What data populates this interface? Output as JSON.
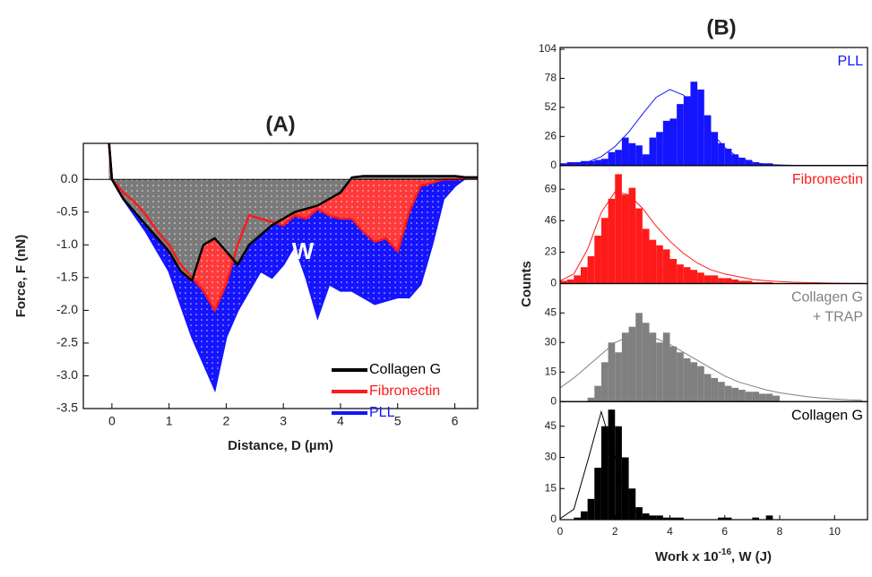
{
  "chart_data": [
    {
      "type": "line",
      "title": "(A)",
      "xlabel": "Distance, D (µm)",
      "ylabel": "Force, F (nN)",
      "annotation": "W",
      "x": [
        -0.05,
        0,
        0.2,
        0.4,
        0.6,
        0.8,
        1.0,
        1.2,
        1.4,
        1.6,
        1.8,
        2.0,
        2.2,
        2.4,
        2.6,
        2.8,
        3.0,
        3.2,
        3.4,
        3.6,
        3.8,
        4.0,
        4.2,
        4.4,
        4.6,
        4.8,
        5.0,
        5.2,
        5.4,
        5.6,
        5.8,
        6.0,
        6.2,
        6.4
      ],
      "series": [
        {
          "name": "PLL",
          "color": "#1414ff",
          "fill": "#1414ff",
          "values": [
            0.55,
            0,
            -0.3,
            -0.55,
            -0.8,
            -1.1,
            -1.4,
            -1.9,
            -2.4,
            -2.8,
            -3.2,
            -2.4,
            -2.0,
            -1.7,
            -1.4,
            -1.5,
            -1.3,
            -1.0,
            -1.5,
            -2.1,
            -1.6,
            -1.7,
            -1.7,
            -1.8,
            -1.9,
            -1.85,
            -1.8,
            -1.8,
            -1.6,
            -1.0,
            -0.3,
            -0.1,
            0.03,
            0.03
          ]
        },
        {
          "name": "Fibronectin",
          "color": "#ff1a1a",
          "fill": "#ff3a3a",
          "values": [
            0.55,
            0,
            -0.2,
            -0.35,
            -0.55,
            -0.8,
            -1.0,
            -1.3,
            -1.5,
            -1.7,
            -2.0,
            -1.6,
            -1.0,
            -0.55,
            -0.6,
            -0.65,
            -0.7,
            -0.55,
            -0.6,
            -0.45,
            -0.55,
            -0.6,
            -0.6,
            -0.8,
            -0.95,
            -0.9,
            -1.1,
            -0.5,
            -0.1,
            -0.05,
            0,
            0,
            0.03,
            0.03
          ]
        },
        {
          "name": "Collagen G",
          "color": "#000000",
          "fill": "#7a7a7a",
          "values": [
            0.55,
            0,
            -0.3,
            -0.5,
            -0.7,
            -0.9,
            -1.1,
            -1.4,
            -1.55,
            -1.0,
            -0.9,
            -1.1,
            -1.3,
            -1.0,
            -0.85,
            -0.7,
            -0.6,
            -0.5,
            -0.45,
            -0.4,
            -0.3,
            -0.2,
            0.03,
            0.05,
            0.05,
            0.05,
            0.05,
            0.05,
            0.05,
            0.05,
            0.05,
            0.05,
            0.03,
            0.03
          ]
        }
      ],
      "xlim": [
        -0.5,
        6.4
      ],
      "xticks": [
        0,
        1,
        2,
        3,
        4,
        5,
        6
      ],
      "ylim": [
        -3.5,
        0.55
      ],
      "yticks": [
        {
          "value": 0,
          "label": "0.0"
        },
        -0.5,
        {
          "value": -1,
          "label": "-1.0"
        },
        -1.5,
        {
          "value": -2,
          "label": "-2.0"
        },
        -2.5,
        {
          "value": -3,
          "label": "-3.0"
        },
        -3.5
      ],
      "legend": "lower right"
    },
    {
      "type": "histogram",
      "title": "(B)",
      "ylabel": "Counts",
      "xlabel": [
        "Work x 10",
        "-16",
        ", W (J)"
      ],
      "xlim": [
        0,
        11.2
      ],
      "xticks": [
        0,
        2,
        4,
        6,
        8,
        10
      ],
      "bins": [
        0,
        0.25,
        0.5,
        0.75,
        1,
        1.25,
        1.5,
        1.75,
        2,
        2.25,
        2.5,
        2.75,
        3,
        3.25,
        3.5,
        3.75,
        4,
        4.25,
        4.5,
        4.75,
        5,
        5.25,
        5.5,
        5.75,
        6,
        6.25,
        6.5,
        6.75,
        7,
        7.25,
        7.5,
        7.75,
        8
      ],
      "fit_x": [
        0,
        0.5,
        1,
        1.5,
        2,
        2.5,
        3,
        3.5,
        4,
        4.5,
        5,
        5.5,
        6,
        6.5,
        7,
        7.5,
        8,
        8.5,
        9,
        9.5,
        10,
        10.5,
        11
      ],
      "panels": [
        {
          "name": [
            "PLL"
          ],
          "color": "#1414ff",
          "ylim": [
            0,
            104
          ],
          "yticks": [
            0,
            26,
            52,
            78,
            104
          ],
          "counts": [
            2,
            3,
            3,
            4,
            4,
            5,
            6,
            12,
            14,
            25,
            20,
            18,
            10,
            25,
            30,
            40,
            42,
            55,
            62,
            75,
            68,
            45,
            30,
            20,
            15,
            10,
            7,
            5,
            3,
            2,
            2,
            1
          ],
          "fit": [
            0.5,
            1,
            3,
            8,
            17,
            30,
            46,
            61,
            68,
            63,
            48,
            30,
            16,
            7,
            3,
            1,
            0.5,
            0.2,
            0.1,
            0,
            0,
            0,
            0
          ]
        },
        {
          "name": [
            "Fibronectin"
          ],
          "color": "#ff1a1a",
          "ylim": [
            0,
            85
          ],
          "yticks": [
            0,
            23,
            46,
            69
          ],
          "counts": [
            2,
            3,
            6,
            12,
            20,
            35,
            48,
            62,
            80,
            65,
            70,
            55,
            40,
            32,
            28,
            25,
            18,
            14,
            12,
            10,
            8,
            6,
            6,
            4,
            4,
            3,
            2,
            2,
            1,
            1,
            1,
            0
          ],
          "fit": [
            2,
            7,
            25,
            52,
            67,
            65,
            55,
            42,
            31,
            22,
            15,
            10,
            7,
            5,
            3,
            2,
            1.5,
            1,
            0.7,
            0.5,
            0.3,
            0.2,
            0.1
          ]
        },
        {
          "name": [
            "Collagen G",
            "+ TRAP"
          ],
          "color": "#808080",
          "ylim": [
            0,
            59
          ],
          "yticks": [
            0,
            15,
            30,
            45
          ],
          "counts": [
            0,
            0,
            0,
            0,
            2,
            8,
            20,
            30,
            25,
            35,
            38,
            45,
            40,
            35,
            30,
            35,
            28,
            25,
            22,
            20,
            18,
            14,
            12,
            10,
            8,
            7,
            6,
            5,
            5,
            4,
            4,
            3
          ],
          "fit": [
            7,
            12,
            18,
            24,
            30,
            33,
            34,
            32,
            29,
            25,
            21,
            17,
            13,
            10,
            8,
            6,
            4.5,
            3.5,
            2.5,
            1.8,
            1.3,
            0.9,
            0.7
          ]
        },
        {
          "name": [
            "Collagen G"
          ],
          "color": "#000000",
          "ylim": [
            0,
            56
          ],
          "yticks": [
            0,
            15,
            30,
            45
          ],
          "counts": [
            0,
            0,
            1,
            4,
            10,
            25,
            45,
            53,
            45,
            30,
            15,
            6,
            3,
            2,
            2,
            1,
            1,
            1,
            0,
            0,
            0,
            0,
            0,
            1,
            1,
            0,
            0,
            0,
            1,
            0,
            2,
            0
          ],
          "fit": [
            0.5,
            5,
            28,
            52,
            30,
            7,
            1,
            0,
            0,
            0,
            0,
            0,
            0,
            0,
            0,
            0,
            0,
            0,
            0,
            0,
            0,
            0,
            0
          ]
        }
      ]
    }
  ]
}
